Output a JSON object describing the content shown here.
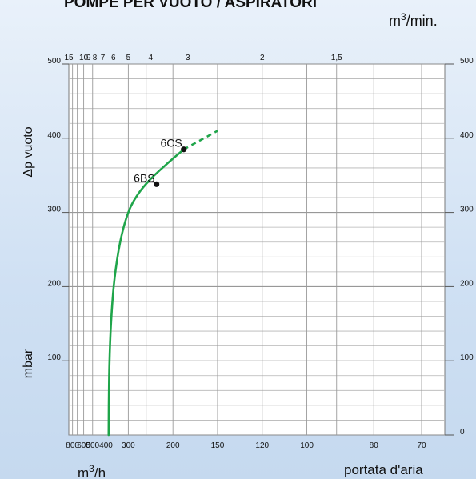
{
  "chart_data": {
    "type": "line",
    "title": "POMPE PER VUOTO / ASPIRATORI",
    "units_top": "m3/min.",
    "units_bottom": "m3/h",
    "ylabel": "Δp vuoto",
    "ylabel_units": "mbar",
    "xlabel": "portata d'aria",
    "x_scale": "reciprocal",
    "xlim_m3h": [
      66,
      900
    ],
    "ylim": [
      0,
      500
    ],
    "grid": true,
    "y_ticks_left": [
      "500",
      "400",
      "300",
      "200",
      "100"
    ],
    "y_ticks_right": [
      "500",
      "400",
      "300",
      "200",
      "100",
      "0"
    ],
    "x_ticks_bottom": [
      "800",
      "600",
      "500",
      "400",
      "300",
      "200",
      "150",
      "120",
      "100",
      "80",
      "70"
    ],
    "x_ticks_top": [
      "15",
      "10",
      "9",
      "8",
      "7",
      "6",
      "5",
      "4",
      "3",
      "2",
      "1,5"
    ],
    "series": [
      {
        "points": [
          {
            "q": 385,
            "p": 0
          },
          {
            "q": 384,
            "p": 40
          },
          {
            "q": 380,
            "p": 100
          },
          {
            "q": 370,
            "p": 160
          },
          {
            "q": 355,
            "p": 210
          },
          {
            "q": 330,
            "p": 260
          },
          {
            "q": 300,
            "p": 300
          },
          {
            "q": 270,
            "p": 325
          },
          {
            "q": 240,
            "p": 345
          },
          {
            "q": 210,
            "p": 365
          },
          {
            "q": 185,
            "p": 385
          }
        ],
        "extension": [
          {
            "q": 185,
            "p": 385
          },
          {
            "q": 150,
            "p": 410
          }
        ]
      }
    ],
    "markers": [
      {
        "label": "6CS",
        "q": 185,
        "p": 385
      },
      {
        "label": "6BS",
        "q": 228,
        "p": 338
      }
    ]
  }
}
